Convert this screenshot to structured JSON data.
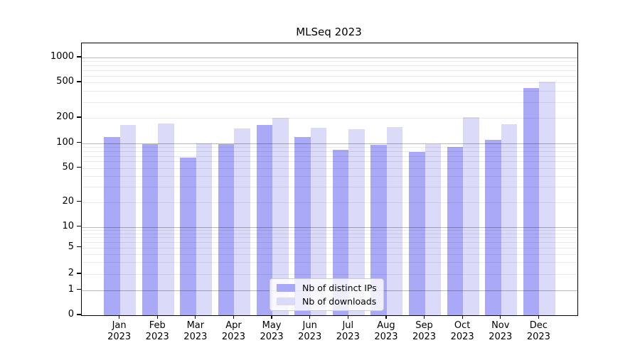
{
  "chart_data": {
    "type": "bar",
    "title": "MLSeq 2023",
    "categories": [
      "Jan",
      "Feb",
      "Mar",
      "Apr",
      "May",
      "Jun",
      "Jul",
      "Aug",
      "Sep",
      "Oct",
      "Nov",
      "Dec"
    ],
    "x_tick_labels": [
      [
        "Jan",
        "2023"
      ],
      [
        "Feb",
        "2023"
      ],
      [
        "Mar",
        "2023"
      ],
      [
        "Apr",
        "2023"
      ],
      [
        "May",
        "2023"
      ],
      [
        "Jun",
        "2023"
      ],
      [
        "Jul",
        "2023"
      ],
      [
        "Aug",
        "2023"
      ],
      [
        "Sep",
        "2023"
      ],
      [
        "Oct",
        "2023"
      ],
      [
        "Nov",
        "2023"
      ],
      [
        "Dec",
        "2023"
      ]
    ],
    "series": [
      {
        "name": "Nb of distinct IPs",
        "color": "#a9a9f7",
        "values": [
          117,
          97,
          66,
          97,
          165,
          118,
          83,
          95,
          78,
          90,
          110,
          430
        ]
      },
      {
        "name": "Nb of downloads",
        "color": "#dbdbf9",
        "values": [
          166,
          172,
          100,
          148,
          200,
          152,
          146,
          156,
          97,
          202,
          168,
          507
        ]
      }
    ],
    "xlabel": "",
    "ylabel": "",
    "y_tick_values": [
      0,
      1,
      2,
      5,
      10,
      20,
      50,
      100,
      200,
      500,
      1000
    ],
    "y_tick_labels": [
      "0",
      "1",
      "2",
      "5",
      "10",
      "20",
      "50",
      "100",
      "200",
      "500",
      "1000"
    ],
    "ylim": [
      0,
      2000
    ],
    "scale": "symlog",
    "grid": true,
    "grid_minor_values": [
      2,
      3,
      4,
      5,
      6,
      7,
      8,
      9,
      20,
      30,
      40,
      50,
      60,
      70,
      80,
      90,
      200,
      300,
      400,
      500,
      600,
      700,
      800,
      900
    ],
    "grid_major_values": [
      1,
      10,
      100,
      1000
    ],
    "legend_position": "lower center"
  }
}
